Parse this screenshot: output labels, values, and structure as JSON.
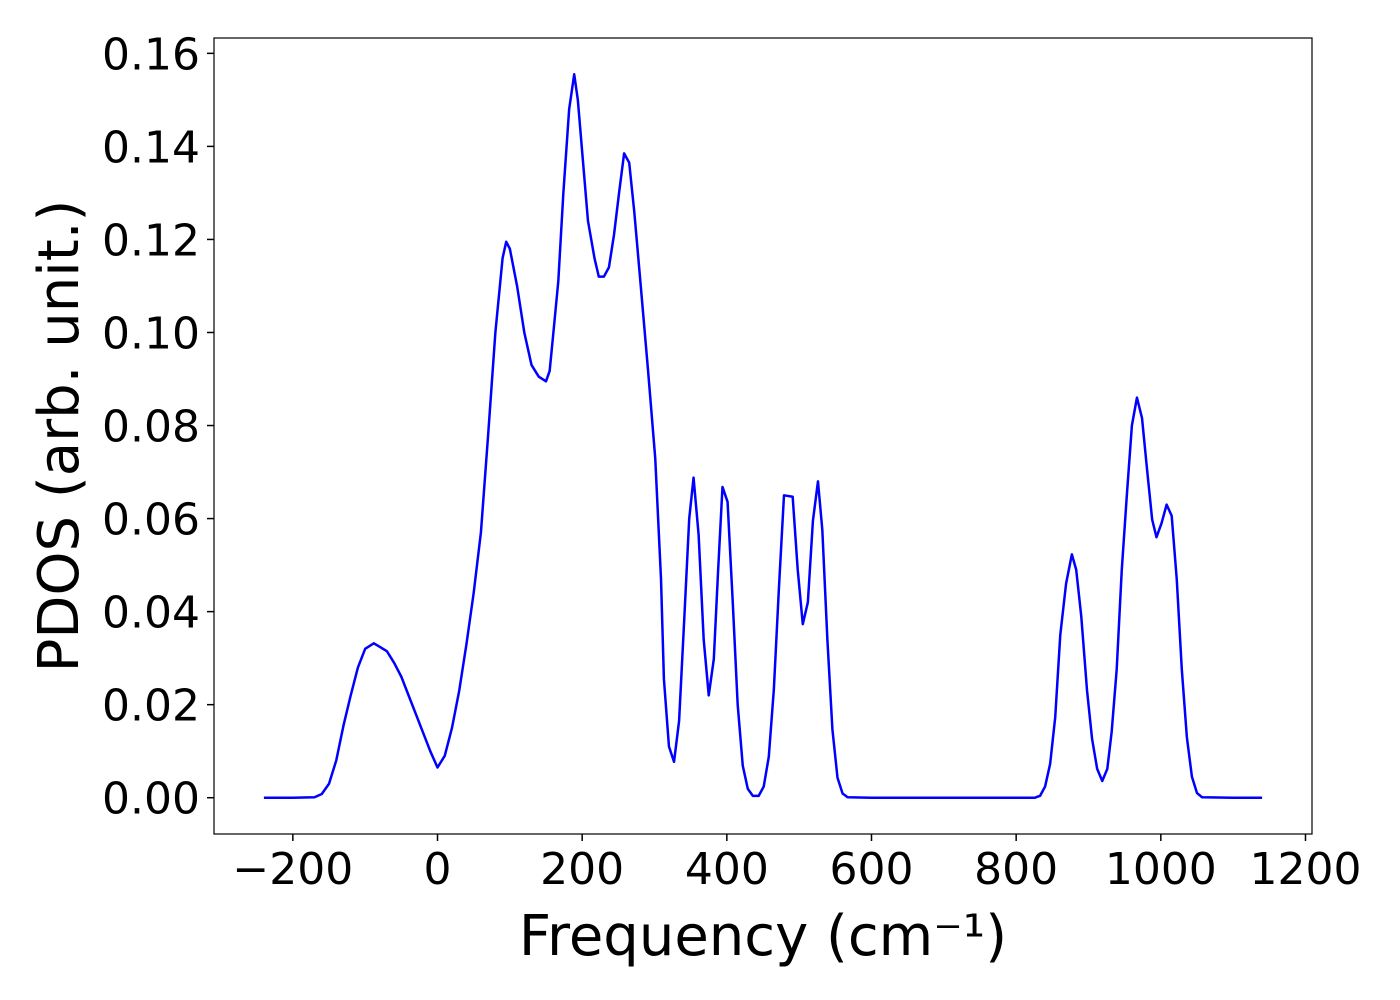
{
  "chart_data": {
    "type": "line",
    "xlabel": "Frequency (cm⁻¹)",
    "ylabel": "PDOS (arb. unit.)",
    "xlim": [
      -309,
      1209
    ],
    "ylim": [
      -0.0078,
      0.1633
    ],
    "xticks": [
      {
        "value": -200,
        "label": "−200"
      },
      0,
      200,
      400,
      600,
      800,
      1000,
      1200
    ],
    "yticks": [
      {
        "value": 0,
        "label": "0.00"
      },
      {
        "value": 0.02,
        "label": "0.02"
      },
      {
        "value": 0.04,
        "label": "0.04"
      },
      {
        "value": 0.06,
        "label": "0.06"
      },
      {
        "value": 0.08,
        "label": "0.08"
      },
      {
        "value": 0.1,
        "label": "0.10"
      },
      {
        "value": 0.12,
        "label": "0.12"
      },
      {
        "value": 0.14,
        "label": "0.14"
      },
      {
        "value": 0.16,
        "label": "0.16"
      }
    ],
    "grid": false,
    "x": [
      -240,
      -200,
      -170,
      -160,
      -150,
      -140,
      -130,
      -120,
      -110,
      -100,
      -88,
      -70,
      -60,
      -50,
      -40,
      -30,
      -20,
      -10,
      0,
      10,
      20,
      30,
      40,
      50,
      60,
      70,
      80,
      90,
      95,
      100,
      110,
      120,
      130,
      140,
      150,
      155,
      159,
      167,
      174,
      182,
      189,
      194,
      201,
      208,
      217,
      223,
      230,
      237,
      244,
      251,
      258,
      265,
      272,
      281,
      291,
      301,
      309,
      313,
      320,
      327,
      334,
      341,
      348,
      354,
      361,
      368,
      375,
      382,
      388,
      394,
      401,
      408,
      415,
      422,
      429,
      436,
      444,
      451,
      458,
      465,
      472,
      479,
      491,
      498,
      505,
      512,
      519,
      526,
      532,
      539,
      546,
      553,
      560,
      567,
      600,
      700,
      800,
      826,
      833,
      840,
      847,
      854,
      861,
      869,
      877,
      883,
      890,
      898,
      905,
      912,
      919,
      926,
      932,
      939,
      946,
      953,
      960,
      967,
      974,
      981,
      988,
      994,
      1001,
      1008,
      1015,
      1022,
      1029,
      1036,
      1043,
      1050,
      1057,
      1100,
      1140
    ],
    "series": [
      {
        "color": "#0000ff",
        "values": [
          0,
          0,
          0.0001,
          0.0008,
          0.003,
          0.008,
          0.0155,
          0.022,
          0.028,
          0.032,
          0.0332,
          0.0315,
          0.029,
          0.026,
          0.022,
          0.018,
          0.014,
          0.01,
          0.0065,
          0.009,
          0.015,
          0.023,
          0.033,
          0.044,
          0.057,
          0.078,
          0.1,
          0.116,
          0.1195,
          0.118,
          0.11,
          0.1,
          0.093,
          0.0905,
          0.0895,
          0.0917,
          0.098,
          0.111,
          0.13,
          0.148,
          0.1555,
          0.15,
          0.137,
          0.124,
          0.116,
          0.112,
          0.112,
          0.114,
          0.121,
          0.13,
          0.1385,
          0.1365,
          0.126,
          0.11,
          0.092,
          0.073,
          0.047,
          0.0255,
          0.011,
          0.0077,
          0.0165,
          0.038,
          0.06,
          0.0688,
          0.0565,
          0.034,
          0.022,
          0.0298,
          0.049,
          0.0668,
          0.0636,
          0.0426,
          0.02,
          0.0069,
          0.0019,
          0.0004,
          0.0004,
          0.0024,
          0.0088,
          0.0233,
          0.045,
          0.065,
          0.0647,
          0.049,
          0.0373,
          0.042,
          0.0595,
          0.068,
          0.0576,
          0.034,
          0.0146,
          0.0043,
          0.0009,
          0.0001,
          0,
          0,
          0,
          0,
          0.0004,
          0.0024,
          0.0073,
          0.0173,
          0.035,
          0.046,
          0.0523,
          0.049,
          0.039,
          0.023,
          0.0126,
          0.0062,
          0.0036,
          0.0062,
          0.0141,
          0.0276,
          0.049,
          0.065,
          0.08,
          0.086,
          0.0816,
          0.0705,
          0.0598,
          0.056,
          0.059,
          0.063,
          0.0606,
          0.047,
          0.0276,
          0.013,
          0.0045,
          0.001,
          0.0001,
          0,
          0
        ]
      }
    ]
  }
}
